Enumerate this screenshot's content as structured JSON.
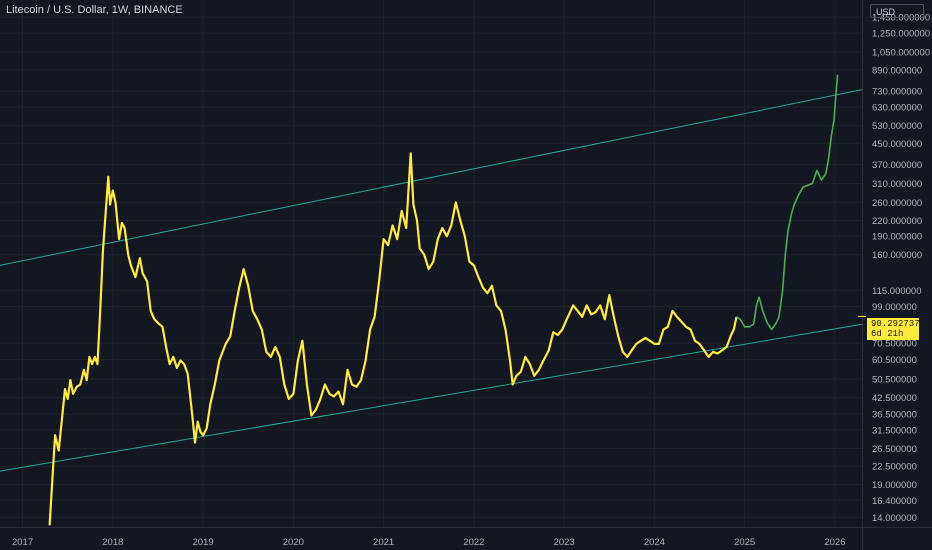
{
  "header": {
    "symbol_title": "Litecoin / U.S. Dollar, 1W, BINANCE",
    "currency": "USD"
  },
  "last_price": {
    "value": "90.292737",
    "countdown": "6d 21h"
  },
  "colors": {
    "background": "#131722",
    "price_line": "#ffeb3b",
    "projection_line": "#4caf50",
    "channel_line": "#26a69a",
    "grid": "#1e222d"
  },
  "chart_data": {
    "type": "line",
    "title": "Litecoin / U.S. Dollar, 1W, BINANCE",
    "yscale": "log",
    "ylim": [
      12.8,
      1700
    ],
    "xlim": [
      2016.75,
      2026.3
    ],
    "grid": true,
    "y_tick_labels": [
      "1,450.000000",
      "1,250.000000",
      "1,050.000000",
      "890.000000",
      "730.000000",
      "630.000000",
      "530.000000",
      "450.000000",
      "370.000000",
      "310.000000",
      "260.000000",
      "220.000000",
      "190.000000",
      "160.000000",
      "115.000000",
      "99.000000",
      "70.500000",
      "60.500000",
      "50.500000",
      "42.500000",
      "36.500000",
      "31.500000",
      "26.500000",
      "22.500000",
      "19.000000",
      "16.400000",
      "14.000000"
    ],
    "x_tick_labels": [
      "2017",
      "2018",
      "2019",
      "2020",
      "2021",
      "2022",
      "2023",
      "2024",
      "2025",
      "2026"
    ],
    "series": [
      {
        "style": "price",
        "points": [
          [
            2017.3,
            13
          ],
          [
            2017.33,
            20
          ],
          [
            2017.36,
            30
          ],
          [
            2017.4,
            26
          ],
          [
            2017.44,
            36
          ],
          [
            2017.47,
            46
          ],
          [
            2017.5,
            42
          ],
          [
            2017.53,
            50
          ],
          [
            2017.56,
            44
          ],
          [
            2017.6,
            47
          ],
          [
            2017.64,
            48
          ],
          [
            2017.68,
            55
          ],
          [
            2017.71,
            50
          ],
          [
            2017.74,
            62
          ],
          [
            2017.77,
            58
          ],
          [
            2017.8,
            62
          ],
          [
            2017.83,
            58
          ],
          [
            2017.86,
            95
          ],
          [
            2017.89,
            165
          ],
          [
            2017.92,
            235
          ],
          [
            2017.95,
            330
          ],
          [
            2017.97,
            255
          ],
          [
            2018.0,
            290
          ],
          [
            2018.03,
            260
          ],
          [
            2018.07,
            185
          ],
          [
            2018.1,
            215
          ],
          [
            2018.13,
            205
          ],
          [
            2018.17,
            160
          ],
          [
            2018.2,
            145
          ],
          [
            2018.25,
            130
          ],
          [
            2018.3,
            155
          ],
          [
            2018.33,
            135
          ],
          [
            2018.38,
            125
          ],
          [
            2018.42,
            95
          ],
          [
            2018.46,
            88
          ],
          [
            2018.5,
            85
          ],
          [
            2018.55,
            82
          ],
          [
            2018.59,
            68
          ],
          [
            2018.63,
            58
          ],
          [
            2018.67,
            62
          ],
          [
            2018.71,
            56
          ],
          [
            2018.75,
            60
          ],
          [
            2018.79,
            58
          ],
          [
            2018.83,
            53
          ],
          [
            2018.88,
            36
          ],
          [
            2018.91,
            28
          ],
          [
            2018.94,
            34
          ],
          [
            2018.97,
            31
          ],
          [
            2019.0,
            30
          ],
          [
            2019.04,
            32
          ],
          [
            2019.08,
            40
          ],
          [
            2019.13,
            48
          ],
          [
            2019.18,
            60
          ],
          [
            2019.25,
            70
          ],
          [
            2019.3,
            75
          ],
          [
            2019.35,
            95
          ],
          [
            2019.4,
            118
          ],
          [
            2019.45,
            140
          ],
          [
            2019.5,
            120
          ],
          [
            2019.55,
            95
          ],
          [
            2019.6,
            88
          ],
          [
            2019.65,
            80
          ],
          [
            2019.7,
            65
          ],
          [
            2019.75,
            62
          ],
          [
            2019.8,
            68
          ],
          [
            2019.85,
            62
          ],
          [
            2019.9,
            48
          ],
          [
            2019.95,
            42
          ],
          [
            2020.0,
            44
          ],
          [
            2020.05,
            60
          ],
          [
            2020.1,
            72
          ],
          [
            2020.15,
            48
          ],
          [
            2020.2,
            36
          ],
          [
            2020.25,
            38
          ],
          [
            2020.3,
            42
          ],
          [
            2020.35,
            48
          ],
          [
            2020.4,
            44
          ],
          [
            2020.45,
            43
          ],
          [
            2020.5,
            45
          ],
          [
            2020.55,
            40
          ],
          [
            2020.6,
            55
          ],
          [
            2020.65,
            48
          ],
          [
            2020.7,
            47
          ],
          [
            2020.75,
            50
          ],
          [
            2020.8,
            60
          ],
          [
            2020.85,
            80
          ],
          [
            2020.9,
            90
          ],
          [
            2020.95,
            125
          ],
          [
            2021.0,
            185
          ],
          [
            2021.05,
            175
          ],
          [
            2021.1,
            210
          ],
          [
            2021.15,
            185
          ],
          [
            2021.2,
            240
          ],
          [
            2021.25,
            205
          ],
          [
            2021.3,
            410
          ],
          [
            2021.33,
            255
          ],
          [
            2021.37,
            220
          ],
          [
            2021.4,
            170
          ],
          [
            2021.45,
            160
          ],
          [
            2021.5,
            140
          ],
          [
            2021.55,
            150
          ],
          [
            2021.6,
            185
          ],
          [
            2021.65,
            205
          ],
          [
            2021.7,
            190
          ],
          [
            2021.75,
            210
          ],
          [
            2021.8,
            260
          ],
          [
            2021.85,
            220
          ],
          [
            2021.9,
            190
          ],
          [
            2021.95,
            150
          ],
          [
            2022.0,
            145
          ],
          [
            2022.05,
            130
          ],
          [
            2022.1,
            118
          ],
          [
            2022.15,
            112
          ],
          [
            2022.2,
            120
          ],
          [
            2022.25,
            100
          ],
          [
            2022.3,
            95
          ],
          [
            2022.35,
            80
          ],
          [
            2022.4,
            60
          ],
          [
            2022.43,
            48
          ],
          [
            2022.47,
            52
          ],
          [
            2022.52,
            54
          ],
          [
            2022.57,
            62
          ],
          [
            2022.62,
            58
          ],
          [
            2022.67,
            52
          ],
          [
            2022.72,
            55
          ],
          [
            2022.77,
            60
          ],
          [
            2022.83,
            66
          ],
          [
            2022.88,
            78
          ],
          [
            2022.93,
            76
          ],
          [
            2022.98,
            80
          ],
          [
            2023.03,
            88
          ],
          [
            2023.1,
            100
          ],
          [
            2023.15,
            95
          ],
          [
            2023.2,
            90
          ],
          [
            2023.25,
            100
          ],
          [
            2023.3,
            92
          ],
          [
            2023.35,
            94
          ],
          [
            2023.4,
            100
          ],
          [
            2023.45,
            88
          ],
          [
            2023.5,
            110
          ],
          [
            2023.55,
            90
          ],
          [
            2023.6,
            75
          ],
          [
            2023.65,
            65
          ],
          [
            2023.7,
            62
          ],
          [
            2023.75,
            66
          ],
          [
            2023.8,
            70
          ],
          [
            2023.85,
            72
          ],
          [
            2023.9,
            74
          ],
          [
            2023.95,
            72
          ],
          [
            2024.0,
            70
          ],
          [
            2024.05,
            70
          ],
          [
            2024.1,
            80
          ],
          [
            2024.15,
            82
          ],
          [
            2024.2,
            95
          ],
          [
            2024.25,
            90
          ],
          [
            2024.3,
            86
          ],
          [
            2024.35,
            82
          ],
          [
            2024.4,
            80
          ],
          [
            2024.45,
            72
          ],
          [
            2024.5,
            70
          ],
          [
            2024.55,
            66
          ],
          [
            2024.6,
            62
          ],
          [
            2024.65,
            65
          ],
          [
            2024.7,
            64
          ],
          [
            2024.75,
            66
          ],
          [
            2024.8,
            68
          ],
          [
            2024.85,
            76
          ],
          [
            2024.88,
            80
          ],
          [
            2024.91,
            90
          ]
        ]
      },
      {
        "style": "projection",
        "points": [
          [
            2024.91,
            90
          ],
          [
            2024.95,
            88
          ],
          [
            2025.0,
            82
          ],
          [
            2025.05,
            82
          ],
          [
            2025.1,
            84
          ],
          [
            2025.13,
            100
          ],
          [
            2025.16,
            108
          ],
          [
            2025.2,
            95
          ],
          [
            2025.25,
            85
          ],
          [
            2025.3,
            80
          ],
          [
            2025.35,
            85
          ],
          [
            2025.38,
            90
          ],
          [
            2025.42,
            115
          ],
          [
            2025.45,
            160
          ],
          [
            2025.48,
            200
          ],
          [
            2025.52,
            235
          ],
          [
            2025.55,
            255
          ],
          [
            2025.6,
            280
          ],
          [
            2025.65,
            300
          ],
          [
            2025.7,
            305
          ],
          [
            2025.75,
            310
          ],
          [
            2025.8,
            350
          ],
          [
            2025.85,
            320
          ],
          [
            2025.9,
            340
          ],
          [
            2025.93,
            390
          ],
          [
            2025.96,
            480
          ],
          [
            2025.99,
            560
          ],
          [
            2026.01,
            700
          ],
          [
            2026.03,
            850
          ]
        ]
      }
    ],
    "trendlines": [
      {
        "points": [
          [
            2016.75,
            145
          ],
          [
            2026.3,
            740
          ]
        ]
      },
      {
        "points": [
          [
            2016.75,
            21.5
          ],
          [
            2026.3,
            84
          ]
        ]
      }
    ]
  }
}
